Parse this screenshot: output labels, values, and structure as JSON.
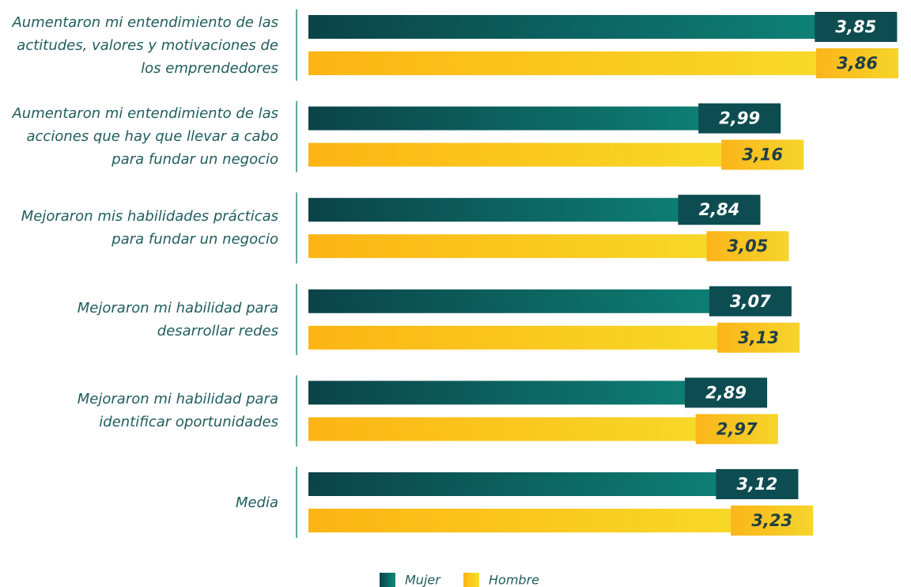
{
  "chart_data": {
    "type": "bar",
    "orientation": "horizontal",
    "categories": [
      "Aumentaron mi entendimiento de las actitudes, valores y motivaciones de los emprendedores",
      "Aumentaron mi entendimiento de las acciones que hay que llevar a cabo para fundar un negocio",
      "Mejoraron mis habilidades prácticas para fundar un negocio",
      "Mejoraron mi habilidad para desarrollar redes",
      "Mejoraron mi habilidad para identificar oportunidades",
      "Media"
    ],
    "series": [
      {
        "name": "Mujer",
        "color": "#0e8a7c",
        "values": [
          3.85,
          2.99,
          2.84,
          3.07,
          2.89,
          3.12
        ],
        "value_labels": [
          "3,85",
          "2,99",
          "2,84",
          "3,07",
          "2,89",
          "3,12"
        ]
      },
      {
        "name": "Hombre",
        "color": "#f6df2c",
        "values": [
          3.86,
          3.16,
          3.05,
          3.13,
          2.97,
          3.23
        ],
        "value_labels": [
          "3,86",
          "3,16",
          "3,05",
          "3,13",
          "2,97",
          "3,23"
        ]
      }
    ],
    "xlim": [
      -0.5,
      4
    ]
  }
}
